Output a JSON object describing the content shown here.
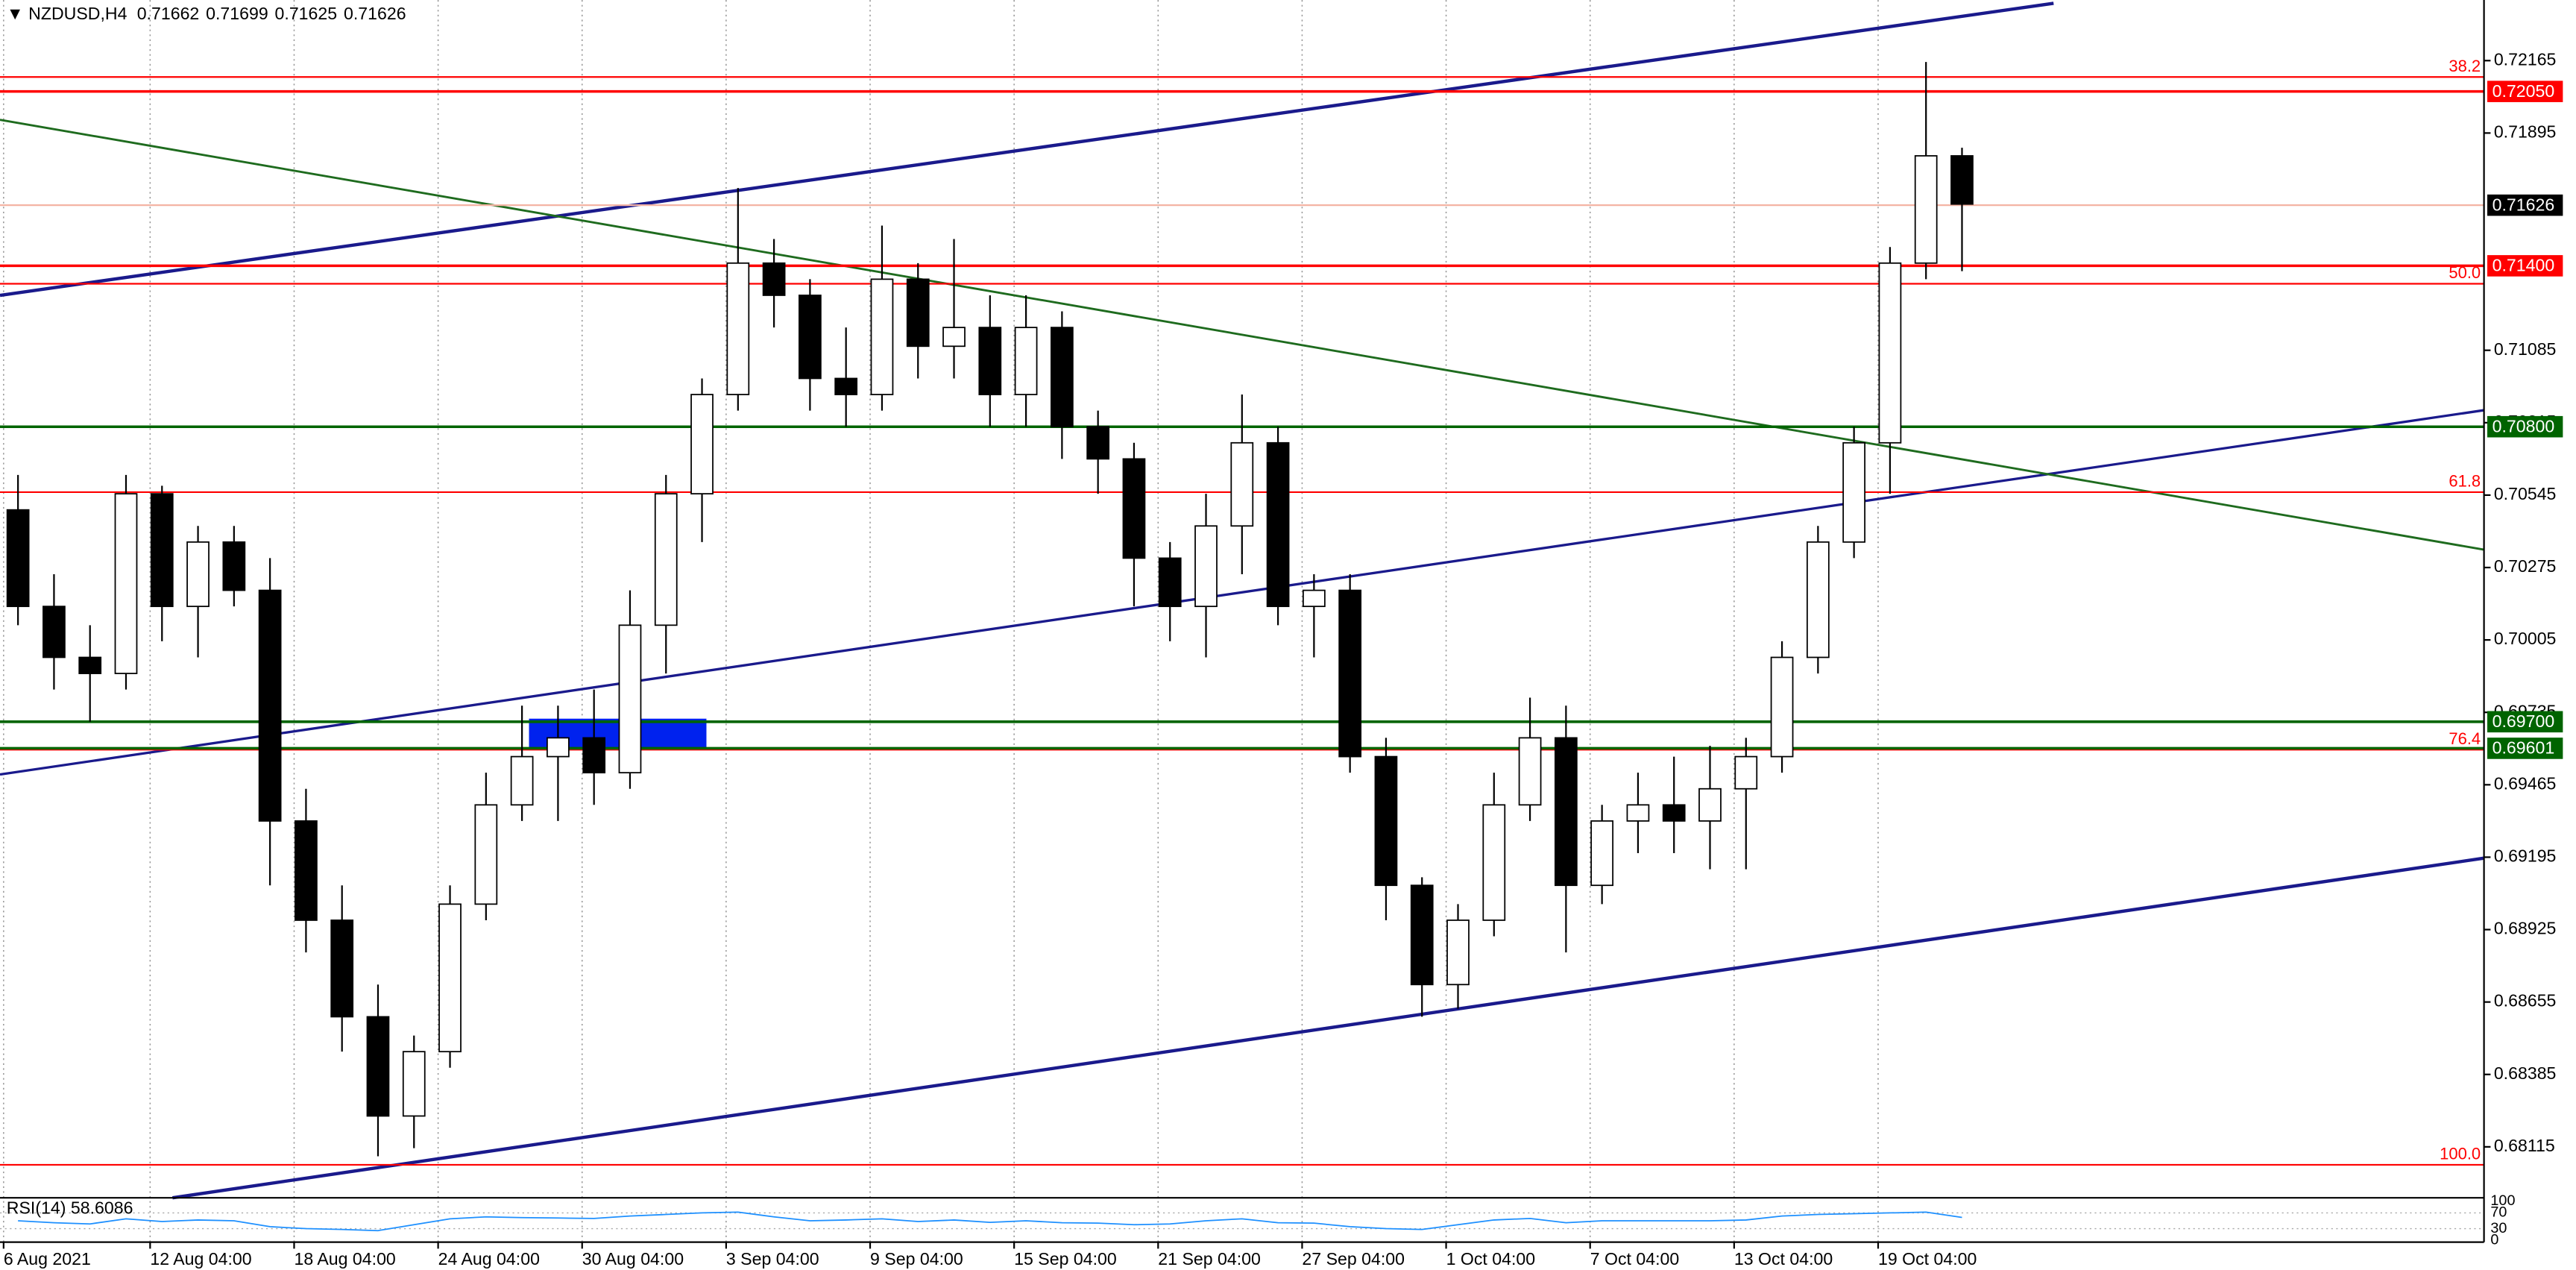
{
  "chart_data": [
    {
      "type": "candlestick",
      "title": "NZDUSD,H4",
      "header_values": [
        "0.71662",
        "0.71699",
        "0.71625",
        "0.71626"
      ],
      "open": [
        0.7049,
        0.7013,
        0.6994,
        0.6988,
        0.7055,
        0.7013,
        0.7037,
        0.7019,
        0.6933,
        0.6896,
        0.686,
        0.6823,
        0.6847,
        0.6902,
        0.6939,
        0.6957,
        0.6964,
        0.6951,
        0.7006,
        0.7055,
        0.7092,
        0.7141,
        0.7129,
        0.7098,
        0.7092,
        0.7135,
        0.711,
        0.7117,
        0.7092,
        0.7117,
        0.708,
        0.7068,
        0.7031,
        0.7013,
        0.7043,
        0.7074,
        0.7013,
        0.7019,
        0.6957,
        0.6909,
        0.6872,
        0.6896,
        0.6939,
        0.6964,
        0.6909,
        0.6933,
        0.6939,
        0.6933,
        0.6945,
        0.6957,
        0.6994,
        0.7037,
        0.7074,
        0.7141,
        0.7181
      ],
      "high": [
        0.7062,
        0.7025,
        0.7006,
        0.7062,
        0.7058,
        0.7043,
        0.7043,
        0.7031,
        0.6945,
        0.6909,
        0.6872,
        0.6853,
        0.6909,
        0.6951,
        0.6976,
        0.6976,
        0.6982,
        0.7019,
        0.7062,
        0.7098,
        0.7169,
        0.715,
        0.7135,
        0.7117,
        0.7155,
        0.7141,
        0.715,
        0.7129,
        0.7129,
        0.7123,
        0.7086,
        0.7074,
        0.7037,
        0.7055,
        0.7092,
        0.708,
        0.7025,
        0.7025,
        0.6964,
        0.6912,
        0.6902,
        0.6951,
        0.6979,
        0.6976,
        0.6939,
        0.6951,
        0.6957,
        0.6961,
        0.6964,
        0.7,
        0.7043,
        0.708,
        0.7147,
        0.7216,
        0.7184
      ],
      "low": [
        0.7006,
        0.6982,
        0.697,
        0.6982,
        0.7,
        0.6994,
        0.7013,
        0.6909,
        0.6884,
        0.6847,
        0.6808,
        0.6811,
        0.6841,
        0.6896,
        0.6933,
        0.6933,
        0.6939,
        0.6945,
        0.6988,
        0.7037,
        0.7086,
        0.7117,
        0.7086,
        0.708,
        0.7086,
        0.7098,
        0.7098,
        0.708,
        0.708,
        0.7068,
        0.7055,
        0.7013,
        0.7,
        0.6994,
        0.7025,
        0.7006,
        0.6994,
        0.6951,
        0.6896,
        0.686,
        0.6863,
        0.689,
        0.6933,
        0.6884,
        0.6902,
        0.6921,
        0.6921,
        0.6915,
        0.6915,
        0.6951,
        0.6988,
        0.7031,
        0.7055,
        0.7135,
        0.7138
      ],
      "close": [
        0.7013,
        0.6994,
        0.6988,
        0.7055,
        0.7013,
        0.7037,
        0.7019,
        0.6933,
        0.6896,
        0.686,
        0.6823,
        0.6847,
        0.6902,
        0.6939,
        0.6957,
        0.6964,
        0.6951,
        0.7006,
        0.7055,
        0.7092,
        0.7141,
        0.7129,
        0.7098,
        0.7092,
        0.7135,
        0.711,
        0.7117,
        0.7092,
        0.7117,
        0.708,
        0.7068,
        0.7031,
        0.7013,
        0.7043,
        0.7074,
        0.7013,
        0.7019,
        0.6957,
        0.6909,
        0.6872,
        0.6896,
        0.6939,
        0.6964,
        0.6909,
        0.6933,
        0.6939,
        0.6933,
        0.6945,
        0.6957,
        0.6994,
        0.7037,
        0.7074,
        0.7141,
        0.7181,
        0.7163
      ],
      "xlim": [
        0,
        69
      ],
      "xticks": [
        {
          "value": 0.1,
          "label": "6 Aug 2021"
        },
        {
          "value": 4.17,
          "label": "12 Aug 04:00"
        },
        {
          "value": 8.17,
          "label": "18 Aug 04:00"
        },
        {
          "value": 12.17,
          "label": "24 Aug 04:00"
        },
        {
          "value": 16.17,
          "label": "30 Aug 04:00"
        },
        {
          "value": 20.17,
          "label": "3 Sep 04:00"
        },
        {
          "value": 24.17,
          "label": "9 Sep 04:00"
        },
        {
          "value": 28.17,
          "label": "15 Sep 04:00"
        },
        {
          "value": 32.17,
          "label": "21 Sep 04:00"
        },
        {
          "value": 36.17,
          "label": "27 Sep 04:00"
        },
        {
          "value": 40.17,
          "label": "1 Oct 04:00"
        },
        {
          "value": 44.17,
          "label": "7 Oct 04:00"
        },
        {
          "value": 48.17,
          "label": "13 Oct 04:00"
        },
        {
          "value": 52.17,
          "label": "19 Oct 04:00"
        }
      ],
      "ylim": [
        0.67925,
        0.72391
      ],
      "yticks": [
        0.72165,
        0.71895,
        0.71085,
        0.70815,
        0.70545,
        0.70275,
        0.70005,
        0.69735,
        0.69465,
        0.69195,
        0.68925,
        0.68655,
        0.68385,
        0.68115
      ],
      "levels": [
        {
          "value": 0.7205,
          "label": "0.72050",
          "color": "#ff0000"
        },
        {
          "value": 0.71626,
          "color": "#000000",
          "line_color": "#f4b4a4"
        },
        {
          "value": 0.714,
          "label": "0.71400",
          "color": "#ff0000"
        },
        {
          "value": 0.708,
          "label": "0.70800",
          "color": "#006400"
        },
        {
          "value": 0.697,
          "label": "0.69700",
          "color": "#006400"
        },
        {
          "value": 0.69601,
          "color": "#006400"
        }
      ],
      "fibo": [
        {
          "label": "38.2",
          "price": 0.72104
        },
        {
          "label": "50.0",
          "price": 0.71333
        },
        {
          "label": "61.8",
          "price": 0.70556
        },
        {
          "label": "76.4",
          "price": 0.69596
        },
        {
          "label": "100.0",
          "price": 0.68048
        }
      ],
      "fibo_color": "#ff0000",
      "grid": true
    },
    {
      "type": "line",
      "title": "RSI(14) 58.6086",
      "color": "#1e90ff",
      "values": [
        50,
        45,
        42,
        55,
        48,
        52,
        50,
        35,
        30,
        28,
        25,
        40,
        55,
        60,
        58,
        57,
        56,
        62,
        66,
        70,
        72,
        60,
        50,
        52,
        55,
        48,
        52,
        46,
        50,
        45,
        44,
        40,
        42,
        50,
        55,
        45,
        44,
        35,
        30,
        28,
        40,
        52,
        56,
        45,
        50,
        50,
        50,
        50,
        52,
        62,
        66,
        68,
        70,
        72,
        58.6
      ],
      "ylim": [
        0,
        100
      ],
      "yticks": [
        100,
        70,
        30,
        0
      ]
    }
  ]
}
